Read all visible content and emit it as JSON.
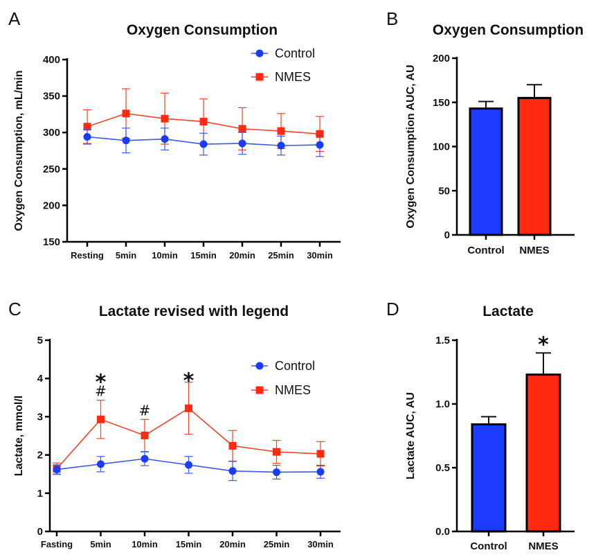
{
  "colors": {
    "control": "#1b3cff",
    "nmes": "#ff2a10",
    "control_line": "#3b57f5",
    "nmes_line": "#f0432a",
    "axis": "#000000"
  },
  "chart_data": [
    {
      "panel": "A",
      "type": "line",
      "title": "Oxygen Consumption",
      "xlabel": "",
      "ylabel": "Oxygen Consumption, mL/min",
      "categories": [
        "Resting",
        "5min",
        "10min",
        "15min",
        "20min",
        "25min",
        "30min"
      ],
      "ylim": [
        150,
        400
      ],
      "yticks": [
        150,
        200,
        250,
        300,
        350,
        400
      ],
      "legend_position": "top-right",
      "series": [
        {
          "name": "Control",
          "color_key": "control",
          "marker": "circle",
          "values": [
            294,
            289,
            291,
            284,
            285,
            282,
            283
          ],
          "err_up": [
            10,
            17,
            15,
            15,
            15,
            13,
            13
          ],
          "err_down": [
            10,
            17,
            15,
            15,
            15,
            13,
            16
          ]
        },
        {
          "name": "NMES",
          "color_key": "nmes",
          "marker": "square",
          "values": [
            308,
            326,
            319,
            315,
            305,
            302,
            298
          ],
          "err_up": [
            23,
            34,
            35,
            31,
            29,
            24,
            24
          ],
          "err_down": [
            23,
            34,
            35,
            31,
            29,
            24,
            24
          ]
        }
      ],
      "annotations": []
    },
    {
      "panel": "B",
      "type": "bar",
      "title": "Oxygen Consumption",
      "xlabel": "",
      "ylabel": "Oxygen Consumption AUC, AU",
      "categories": [
        "Control",
        "NMES"
      ],
      "values": [
        143,
        155
      ],
      "err_up": [
        8,
        15
      ],
      "ylim": [
        0,
        200
      ],
      "yticks": [
        0,
        50,
        100,
        150,
        200
      ],
      "bar_colors": [
        "control",
        "nmes"
      ],
      "annotations": []
    },
    {
      "panel": "C",
      "type": "line",
      "title": "Lactate revised with legend",
      "xlabel": "",
      "ylabel": "Lactate, mmol/l",
      "categories": [
        "Fasting",
        "5min",
        "10min",
        "15min",
        "20min",
        "25min",
        "30min"
      ],
      "ylim": [
        0,
        5
      ],
      "yticks": [
        0,
        1,
        2,
        3,
        4,
        5
      ],
      "legend_position": "top-right",
      "series": [
        {
          "name": "Control",
          "color_key": "control",
          "marker": "circle",
          "values": [
            1.62,
            1.76,
            1.9,
            1.74,
            1.58,
            1.55,
            1.56
          ],
          "err_up": [
            0.12,
            0.2,
            0.18,
            0.22,
            0.25,
            0.18,
            0.17
          ],
          "err_down": [
            0.12,
            0.2,
            0.18,
            0.22,
            0.25,
            0.18,
            0.17
          ]
        },
        {
          "name": "NMES",
          "color_key": "nmes",
          "marker": "square",
          "values": [
            1.64,
            2.93,
            2.51,
            3.22,
            2.24,
            2.08,
            2.03
          ],
          "err_up": [
            0.15,
            0.5,
            0.42,
            0.68,
            0.4,
            0.3,
            0.32
          ],
          "err_down": [
            0.15,
            0.5,
            0.42,
            0.68,
            0.4,
            0.3,
            0.32
          ]
        }
      ],
      "annotations": [
        {
          "category_index": 1,
          "symbols": [
            "*",
            "#"
          ]
        },
        {
          "category_index": 2,
          "symbols": [
            "#"
          ]
        },
        {
          "category_index": 3,
          "symbols": [
            "*"
          ]
        }
      ]
    },
    {
      "panel": "D",
      "type": "bar",
      "title": "Lactate",
      "xlabel": "",
      "ylabel": "Lactate AUC, AU",
      "categories": [
        "Control",
        "NMES"
      ],
      "values": [
        0.84,
        1.23
      ],
      "err_up": [
        0.06,
        0.17
      ],
      "ylim": [
        0,
        1.5
      ],
      "yticks": [
        "0.0",
        "0.5",
        "1.0",
        "1.5"
      ],
      "bar_colors": [
        "control",
        "nmes"
      ],
      "annotations": [
        {
          "category_index": 1,
          "symbols": [
            "*"
          ]
        }
      ]
    }
  ]
}
